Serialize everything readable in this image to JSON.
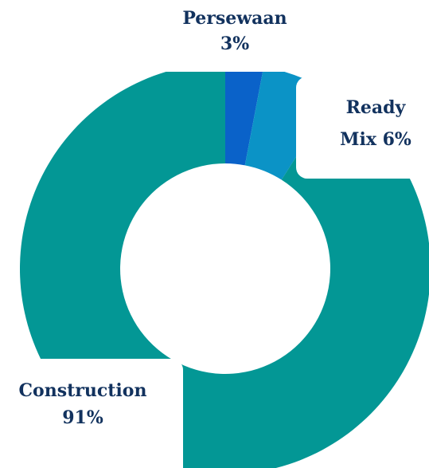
{
  "chart_data": {
    "type": "pie",
    "donut": true,
    "slices": [
      {
        "name": "Persewaan",
        "value": 3,
        "color": "#0a62c9",
        "label_lines": [
          "Persewaan",
          "3%"
        ]
      },
      {
        "name": "Ready Mix",
        "value": 6,
        "color": "#0b93c6",
        "label_lines": [
          "Ready",
          "Mix 6%"
        ]
      },
      {
        "name": "Construction",
        "value": 91,
        "color": "#039795",
        "label_lines": [
          "Construction",
          "91%"
        ]
      }
    ]
  }
}
